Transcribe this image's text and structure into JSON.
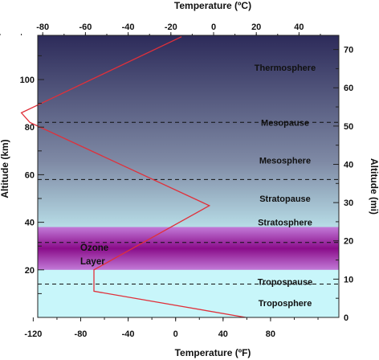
{
  "chart_data": {
    "type": "line",
    "title_top": "Temperature (ºC)",
    "title_bottom": "Temperature (ºF)",
    "ylabel_left": "Altitude (km)",
    "ylabel_right": "Altitude (mi)",
    "x_top_ticks": [
      -80,
      -60,
      -40,
      -20,
      0,
      20,
      40
    ],
    "x_bottom_ticks": [
      -120,
      -80,
      -40,
      0,
      40,
      80
    ],
    "y_left_ticks": [
      20,
      40,
      60,
      80,
      100
    ],
    "y_right_ticks": [
      0,
      10,
      20,
      30,
      40,
      50,
      60,
      70
    ],
    "xlim_c": [
      -100,
      50
    ],
    "ylim_km": [
      0,
      120
    ],
    "grid": false,
    "series": [
      {
        "color": "#e0303a",
        "x_temperature_c": [
          15,
          -56,
          -56,
          -2,
          -86,
          -90,
          -15
        ],
        "y_altitude_km": [
          0,
          11,
          20,
          47,
          82,
          86,
          118
        ]
      }
    ],
    "layers": [
      {
        "label": "Thermosphere",
        "y_km": 105
      },
      {
        "label": "Mesopause",
        "y_km": 82
      },
      {
        "label": "Mesosphere",
        "y_km": 66
      },
      {
        "label": "Stratopause",
        "y_km": 50
      },
      {
        "label": "Stratosphere",
        "y_km": 40
      },
      {
        "label": "Troposphere",
        "y_km": 6
      },
      {
        "label": "Tropospause",
        "y_km": 15
      }
    ],
    "boundaries_km": [
      82,
      58,
      31.5,
      14
    ],
    "ozone": {
      "label_line1": "Ozone",
      "label_line2": "Layer",
      "from_km": 20,
      "to_km": 38
    },
    "colors": {
      "sky_top": "#2d2b5a",
      "sky_mid": "#7f8aa5",
      "sky_low": "#c8f6fa",
      "ozone_edge": "#c27ad8",
      "ozone_core": "#8a0d8a"
    }
  }
}
